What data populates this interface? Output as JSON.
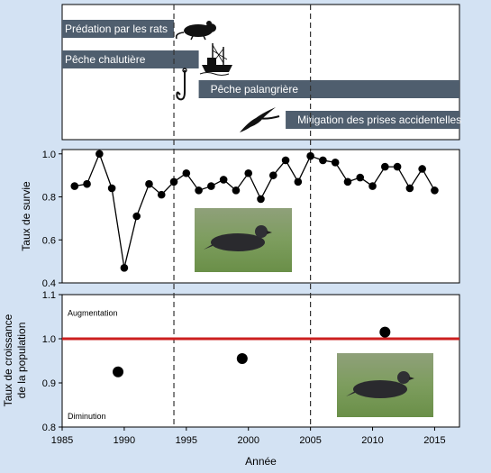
{
  "colors": {
    "page_background": "#d3e2f3",
    "panel_background": "#ffffff",
    "bar_fill": "#4f5e6e",
    "bar_text": "#ffffff",
    "reference_line": "#cc1f1f",
    "marker": "#000000"
  },
  "icons": [
    "rat-icon",
    "trawler-icon",
    "fishhook-icon",
    "petrel-icon",
    "petrel-photo"
  ],
  "chart_data": [
    {
      "type": "timeline",
      "panel": "events",
      "xlim": [
        1985,
        2017
      ],
      "events": [
        {
          "label": "Prédation par les rats",
          "start": 1985,
          "end": 1994
        },
        {
          "label": "Pêche chalutière",
          "start": 1985,
          "end": 1996
        },
        {
          "label": "Pêche palangrière",
          "start": 1996,
          "end": 2017
        },
        {
          "label": "Mitigation des prises accidentelles",
          "start": 2003,
          "end": 2017
        }
      ],
      "vlines": [
        1994,
        2005
      ]
    },
    {
      "type": "line",
      "panel": "survival",
      "ylabel": "Taux de survie",
      "xlim": [
        1985,
        2017
      ],
      "ylim": [
        0.4,
        1.02
      ],
      "yticks": [
        0.4,
        0.6,
        0.8,
        1.0
      ],
      "ytick_labels": [
        "0.4",
        "0.6",
        "0.8",
        "1.0"
      ],
      "markers": true,
      "x": [
        1986,
        1987,
        1988,
        1989,
        1990,
        1991,
        1992,
        1993,
        1994,
        1995,
        1996,
        1997,
        1998,
        1999,
        2000,
        2001,
        2002,
        2003,
        2004,
        2005,
        2006,
        2007,
        2008,
        2009,
        2010,
        2011,
        2012,
        2013,
        2014,
        2015
      ],
      "y": [
        0.85,
        0.86,
        1.0,
        0.84,
        0.47,
        0.71,
        0.86,
        0.81,
        0.87,
        0.91,
        0.83,
        0.85,
        0.88,
        0.83,
        0.91,
        0.79,
        0.9,
        0.97,
        0.87,
        0.99,
        0.97,
        0.96,
        0.87,
        0.89,
        0.85,
        0.94,
        0.94,
        0.84,
        0.93,
        0.83
      ]
    },
    {
      "type": "scatter",
      "panel": "growth",
      "ylabel": [
        "Taux de croissance",
        "de la population"
      ],
      "xlabel": "Année",
      "xlim": [
        1985,
        2017
      ],
      "ylim": [
        0.8,
        1.1
      ],
      "yticks": [
        0.8,
        0.9,
        1.0,
        1.1
      ],
      "ytick_labels": [
        "0.8",
        "0.9",
        "1.0",
        "1.1"
      ],
      "xticks": [
        1985,
        1990,
        1995,
        2000,
        2005,
        2010,
        2015
      ],
      "xtick_labels": [
        "1985",
        "1990",
        "1995",
        "2000",
        "2005",
        "2010",
        "2015"
      ],
      "x": [
        1989.5,
        1999.5,
        2011
      ],
      "y": [
        0.925,
        0.955,
        1.015
      ],
      "reference_line": 1.0,
      "annotations": {
        "above": "Augmentation",
        "below": "Diminution"
      }
    }
  ]
}
